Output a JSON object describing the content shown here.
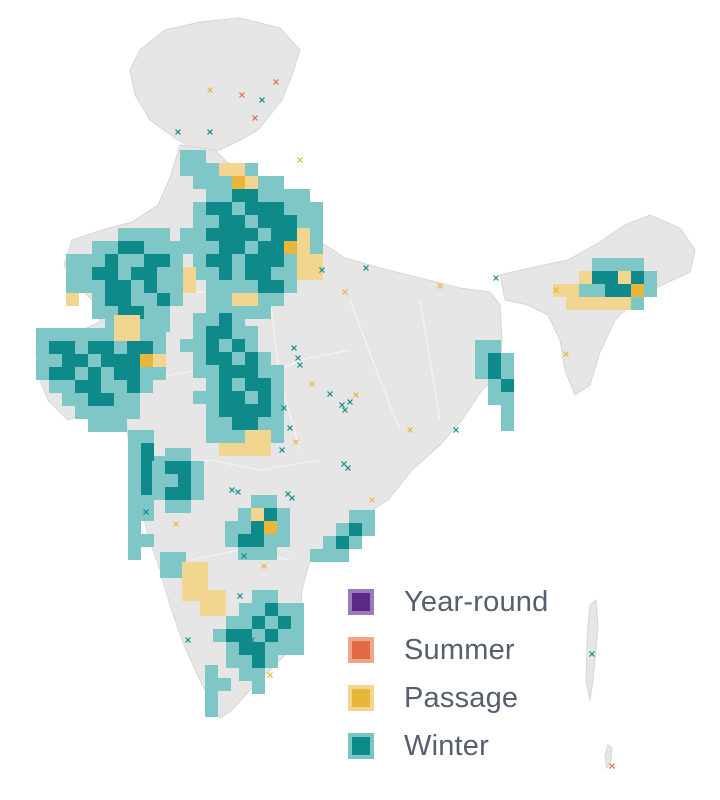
{
  "map": {
    "land_color": "#e6e6e6",
    "colors": {
      "winter_fill": "#0e8a8a",
      "winter_halo": "#7fc7c7",
      "passage_fill": "#e9b63c",
      "passage_halo": "#f2d58f",
      "summer_fill": "#e26b45",
      "yearround_fill": "#5b2a86"
    }
  },
  "legend": {
    "items": [
      {
        "label": "Year-round",
        "fill": "#5b2a86",
        "border": "#9b7cb8"
      },
      {
        "label": "Summer",
        "fill": "#e26b45",
        "border": "#f0a58c"
      },
      {
        "label": "Passage",
        "fill": "#e9b63c",
        "border": "#f3d58d"
      },
      {
        "label": "Winter",
        "fill": "#0e8a8a",
        "border": "#7cc5c5"
      }
    ]
  }
}
